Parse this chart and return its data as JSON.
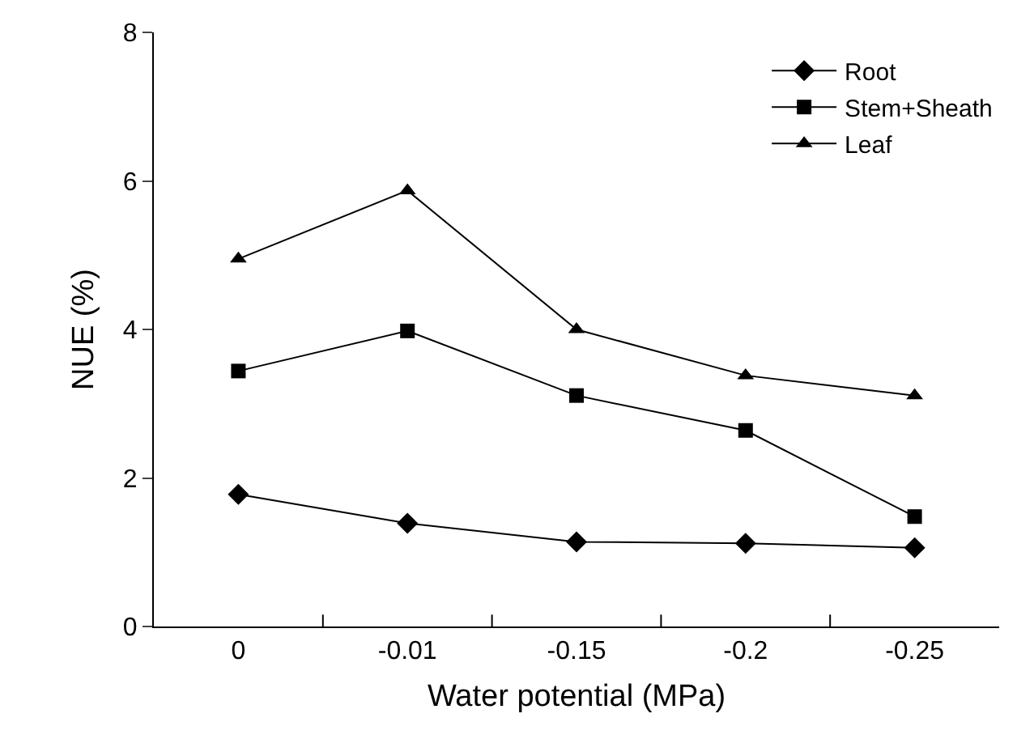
{
  "chart_data": {
    "type": "line",
    "xlabel": "Water potential (MPa)",
    "ylabel": "NUE (%)",
    "categories": [
      "0",
      "-0.01",
      "-0.15",
      "-0.2",
      "-0.25"
    ],
    "ylim": [
      0,
      8
    ],
    "yticks": [
      0,
      2,
      4,
      6,
      8
    ],
    "legend": "top right",
    "line_style": "solid",
    "series": [
      {
        "name": "Root",
        "color": "#000000",
        "marker": "diamond",
        "values": [
          1.78,
          1.39,
          1.14,
          1.12,
          1.06
        ]
      },
      {
        "name": "Stem+Sheath",
        "color": "#000000",
        "marker": "square",
        "values": [
          3.44,
          3.98,
          3.11,
          2.64,
          1.48
        ]
      },
      {
        "name": "Leaf",
        "color": "#000000",
        "marker": "triangle",
        "values": [
          4.95,
          5.87,
          4.0,
          3.38,
          3.11
        ]
      }
    ]
  }
}
